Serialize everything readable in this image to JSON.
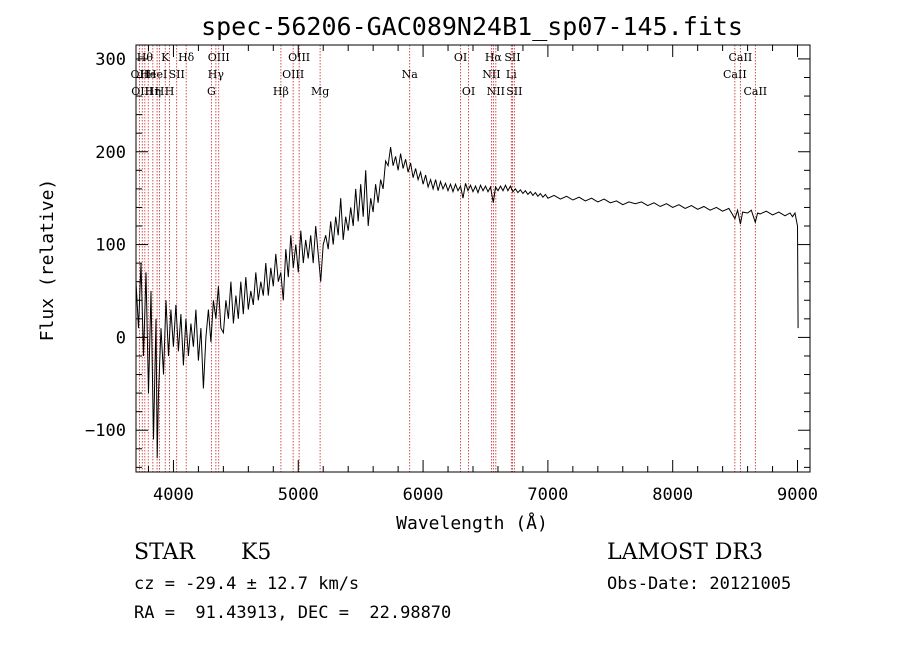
{
  "chart_data": {
    "type": "line",
    "title": "spec-56206-GAC089N24B1_sp07-145.fits",
    "xlabel": "Wavelength (Å)",
    "ylabel": "Flux (relative)",
    "xlim": [
      3700,
      9100
    ],
    "ylim": [
      -145,
      315
    ],
    "xticks": [
      4000,
      5000,
      6000,
      7000,
      8000,
      9000
    ],
    "yticks": [
      -100,
      0,
      100,
      200,
      300
    ],
    "series": [
      {
        "name": "spectrum",
        "points": [
          [
            3700,
            60
          ],
          [
            3720,
            10
          ],
          [
            3740,
            80
          ],
          [
            3760,
            -20
          ],
          [
            3780,
            70
          ],
          [
            3800,
            -60
          ],
          [
            3820,
            50
          ],
          [
            3840,
            -110
          ],
          [
            3860,
            20
          ],
          [
            3870,
            -130
          ],
          [
            3880,
            -60
          ],
          [
            3900,
            10
          ],
          [
            3920,
            -40
          ],
          [
            3940,
            40
          ],
          [
            3960,
            -20
          ],
          [
            3980,
            30
          ],
          [
            4000,
            -10
          ],
          [
            4020,
            35
          ],
          [
            4040,
            -15
          ],
          [
            4060,
            25
          ],
          [
            4080,
            -30
          ],
          [
            4100,
            20
          ],
          [
            4120,
            -20
          ],
          [
            4140,
            15
          ],
          [
            4160,
            -10
          ],
          [
            4180,
            30
          ],
          [
            4200,
            -25
          ],
          [
            4220,
            10
          ],
          [
            4240,
            -55
          ],
          [
            4260,
            0
          ],
          [
            4280,
            30
          ],
          [
            4300,
            -5
          ],
          [
            4320,
            40
          ],
          [
            4340,
            20
          ],
          [
            4360,
            55
          ],
          [
            4380,
            10
          ],
          [
            4400,
            5
          ],
          [
            4420,
            40
          ],
          [
            4440,
            20
          ],
          [
            4460,
            60
          ],
          [
            4480,
            15
          ],
          [
            4500,
            45
          ],
          [
            4520,
            20
          ],
          [
            4540,
            60
          ],
          [
            4560,
            25
          ],
          [
            4580,
            65
          ],
          [
            4600,
            30
          ],
          [
            4620,
            50
          ],
          [
            4640,
            35
          ],
          [
            4660,
            70
          ],
          [
            4680,
            40
          ],
          [
            4700,
            60
          ],
          [
            4720,
            45
          ],
          [
            4740,
            80
          ],
          [
            4760,
            45
          ],
          [
            4780,
            75
          ],
          [
            4800,
            55
          ],
          [
            4820,
            90
          ],
          [
            4840,
            60
          ],
          [
            4860,
            70
          ],
          [
            4880,
            40
          ],
          [
            4900,
            95
          ],
          [
            4920,
            65
          ],
          [
            4940,
            110
          ],
          [
            4960,
            75
          ],
          [
            4980,
            100
          ],
          [
            5000,
            70
          ],
          [
            5020,
            115
          ],
          [
            5040,
            80
          ],
          [
            5060,
            105
          ],
          [
            5080,
            85
          ],
          [
            5100,
            110
          ],
          [
            5120,
            80
          ],
          [
            5140,
            120
          ],
          [
            5160,
            90
          ],
          [
            5180,
            60
          ],
          [
            5200,
            100
          ],
          [
            5220,
            110
          ],
          [
            5240,
            95
          ],
          [
            5260,
            125
          ],
          [
            5280,
            100
          ],
          [
            5300,
            130
          ],
          [
            5320,
            110
          ],
          [
            5340,
            150
          ],
          [
            5360,
            105
          ],
          [
            5380,
            130
          ],
          [
            5400,
            115
          ],
          [
            5420,
            140
          ],
          [
            5440,
            120
          ],
          [
            5460,
            160
          ],
          [
            5480,
            125
          ],
          [
            5500,
            165
          ],
          [
            5520,
            130
          ],
          [
            5540,
            180
          ],
          [
            5560,
            120
          ],
          [
            5580,
            150
          ],
          [
            5600,
            135
          ],
          [
            5620,
            165
          ],
          [
            5640,
            145
          ],
          [
            5660,
            170
          ],
          [
            5680,
            160
          ],
          [
            5700,
            190
          ],
          [
            5720,
            185
          ],
          [
            5740,
            205
          ],
          [
            5760,
            185
          ],
          [
            5780,
            195
          ],
          [
            5800,
            180
          ],
          [
            5820,
            198
          ],
          [
            5840,
            182
          ],
          [
            5860,
            192
          ],
          [
            5880,
            178
          ],
          [
            5900,
            188
          ],
          [
            5920,
            172
          ],
          [
            5940,
            182
          ],
          [
            5960,
            170
          ],
          [
            5980,
            178
          ],
          [
            6000,
            165
          ],
          [
            6020,
            175
          ],
          [
            6040,
            162
          ],
          [
            6060,
            170
          ],
          [
            6080,
            160
          ],
          [
            6100,
            170
          ],
          [
            6120,
            158
          ],
          [
            6140,
            168
          ],
          [
            6160,
            160
          ],
          [
            6180,
            166
          ],
          [
            6200,
            158
          ],
          [
            6220,
            165
          ],
          [
            6240,
            157
          ],
          [
            6260,
            165
          ],
          [
            6280,
            158
          ],
          [
            6300,
            163
          ],
          [
            6320,
            150
          ],
          [
            6340,
            166
          ],
          [
            6360,
            158
          ],
          [
            6380,
            164
          ],
          [
            6400,
            157
          ],
          [
            6420,
            163
          ],
          [
            6440,
            156
          ],
          [
            6460,
            164
          ],
          [
            6480,
            158
          ],
          [
            6500,
            163
          ],
          [
            6520,
            157
          ],
          [
            6540,
            162
          ],
          [
            6563,
            145
          ],
          [
            6580,
            162
          ],
          [
            6600,
            158
          ],
          [
            6620,
            163
          ],
          [
            6640,
            158
          ],
          [
            6660,
            164
          ],
          [
            6680,
            158
          ],
          [
            6700,
            163
          ],
          [
            6720,
            157
          ],
          [
            6740,
            160
          ],
          [
            6760,
            156
          ],
          [
            6780,
            159
          ],
          [
            6800,
            155
          ],
          [
            6820,
            158
          ],
          [
            6840,
            154
          ],
          [
            6860,
            157
          ],
          [
            6880,
            153
          ],
          [
            6900,
            156
          ],
          [
            6920,
            152
          ],
          [
            6940,
            155
          ],
          [
            6960,
            151
          ],
          [
            6980,
            154
          ],
          [
            7000,
            150
          ],
          [
            7050,
            153
          ],
          [
            7100,
            149
          ],
          [
            7150,
            152
          ],
          [
            7200,
            148
          ],
          [
            7250,
            151
          ],
          [
            7300,
            147
          ],
          [
            7350,
            150
          ],
          [
            7400,
            146
          ],
          [
            7450,
            149
          ],
          [
            7500,
            145
          ],
          [
            7550,
            147
          ],
          [
            7600,
            143
          ],
          [
            7650,
            146
          ],
          [
            7700,
            144
          ],
          [
            7750,
            146
          ],
          [
            7800,
            142
          ],
          [
            7850,
            145
          ],
          [
            7900,
            141
          ],
          [
            7950,
            144
          ],
          [
            8000,
            140
          ],
          [
            8050,
            143
          ],
          [
            8100,
            139
          ],
          [
            8150,
            142
          ],
          [
            8200,
            138
          ],
          [
            8250,
            141
          ],
          [
            8300,
            137
          ],
          [
            8350,
            140
          ],
          [
            8400,
            136
          ],
          [
            8450,
            139
          ],
          [
            8498,
            128
          ],
          [
            8520,
            137
          ],
          [
            8542,
            122
          ],
          [
            8560,
            135
          ],
          [
            8600,
            134
          ],
          [
            8630,
            137
          ],
          [
            8662,
            124
          ],
          [
            8680,
            134
          ],
          [
            8700,
            133
          ],
          [
            8750,
            136
          ],
          [
            8800,
            132
          ],
          [
            8850,
            135
          ],
          [
            8900,
            131
          ],
          [
            8940,
            134
          ],
          [
            8960,
            130
          ],
          [
            8980,
            134
          ],
          [
            9000,
            120
          ],
          [
            9005,
            10
          ]
        ]
      }
    ],
    "lines": [
      {
        "wl": 3727,
        "label": "OII",
        "row": 1
      },
      {
        "wl": 3750,
        "label": "OIII",
        "row": 2
      },
      {
        "wl": 3771,
        "label": "Hθ",
        "row": 0
      },
      {
        "wl": 3798,
        "label": "He",
        "row": 1
      },
      {
        "wl": 3835,
        "label": "Hη",
        "row": 2
      },
      {
        "wl": 3869,
        "label": "HeI",
        "row": 1
      },
      {
        "wl": 3889,
        "label": "H",
        "row": 2
      },
      {
        "wl": 3934,
        "label": "K",
        "row": 0
      },
      {
        "wl": 3969,
        "label": "H",
        "row": 2
      },
      {
        "wl": 4026,
        "label": "SII",
        "row": 1
      },
      {
        "wl": 4102,
        "label": "Hδ",
        "row": 0
      },
      {
        "wl": 4304,
        "label": "G",
        "row": 2
      },
      {
        "wl": 4340,
        "label": "Hγ",
        "row": 1
      },
      {
        "wl": 4363,
        "label": "OIII",
        "row": 0
      },
      {
        "wl": 4861,
        "label": "Hβ",
        "row": 2
      },
      {
        "wl": 4959,
        "label": "OIII",
        "row": 1
      },
      {
        "wl": 5007,
        "label": "OIII",
        "row": 0
      },
      {
        "wl": 5175,
        "label": "Mg",
        "row": 2
      },
      {
        "wl": 5893,
        "label": "Na",
        "row": 1
      },
      {
        "wl": 6300,
        "label": "OI",
        "row": 0
      },
      {
        "wl": 6364,
        "label": "OI",
        "row": 2
      },
      {
        "wl": 6548,
        "label": "NII",
        "row": 1
      },
      {
        "wl": 6563,
        "label": "Hα",
        "row": 0
      },
      {
        "wl": 6583,
        "label": "NII",
        "row": 2
      },
      {
        "wl": 6707,
        "label": "Li",
        "row": 1
      },
      {
        "wl": 6716,
        "label": "SII",
        "row": 0
      },
      {
        "wl": 6731,
        "label": "SII",
        "row": 2
      },
      {
        "wl": 8498,
        "label": "CaII",
        "row": 1
      },
      {
        "wl": 8542,
        "label": "CaII",
        "row": 0
      },
      {
        "wl": 8662,
        "label": "CaII",
        "row": 2
      }
    ]
  },
  "info": {
    "object_class": "STAR",
    "subclass": "K5",
    "redshift": "cz = -29.4 ± 12.7 km/s",
    "coords": "RA =  91.43913, DEC =  22.98870",
    "survey": "LAMOST DR3",
    "obs_date": "Obs-Date: 20121005"
  }
}
